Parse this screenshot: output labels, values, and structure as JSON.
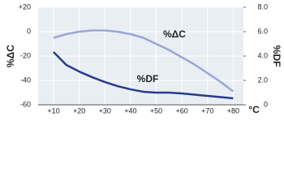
{
  "chart_data": {
    "type": "line",
    "y_label": "%ΔC",
    "y2_label": "%DF",
    "x_label": "°C",
    "x": [
      10,
      15,
      20,
      25,
      30,
      35,
      40,
      45,
      50,
      55,
      60,
      65,
      70,
      75,
      80
    ],
    "series": [
      {
        "name": "%ΔC",
        "color": "#9aa6d6",
        "values": [
          -5,
          -2,
          0,
          1,
          1,
          0,
          -2,
          -5,
          -10,
          -15,
          -21,
          -27,
          -34,
          -41,
          -49
        ]
      },
      {
        "name": "%DF",
        "color": "#283c8c",
        "axis": "y2",
        "values": [
          4.33,
          3.27,
          2.73,
          2.27,
          1.87,
          1.53,
          1.27,
          1.07,
          1.0,
          1.0,
          0.93,
          0.83,
          0.73,
          0.63,
          0.53
        ]
      }
    ],
    "xlim": [
      4,
      84
    ],
    "xticks": [
      {
        "value": 10,
        "label": "+10"
      },
      {
        "value": 20,
        "label": "+20"
      },
      {
        "value": 30,
        "label": "+30"
      },
      {
        "value": 40,
        "label": "+40"
      },
      {
        "value": 50,
        "label": "+50"
      },
      {
        "value": 60,
        "label": "+60"
      },
      {
        "value": 70,
        "label": "+70"
      },
      {
        "value": 80,
        "label": "+80"
      }
    ],
    "ylim": [
      -60,
      20
    ],
    "yticks": [
      -60,
      -40,
      -20,
      0,
      {
        "value": 20,
        "label": "+20"
      }
    ],
    "y2lim": [
      0,
      8
    ],
    "y2ticks": [
      0,
      {
        "value": 2,
        "label": "2.0"
      },
      {
        "value": 4,
        "label": "4.0"
      },
      {
        "value": 6,
        "label": "6.0"
      },
      {
        "value": 8,
        "label": "8.0"
      }
    ],
    "grid": true
  }
}
